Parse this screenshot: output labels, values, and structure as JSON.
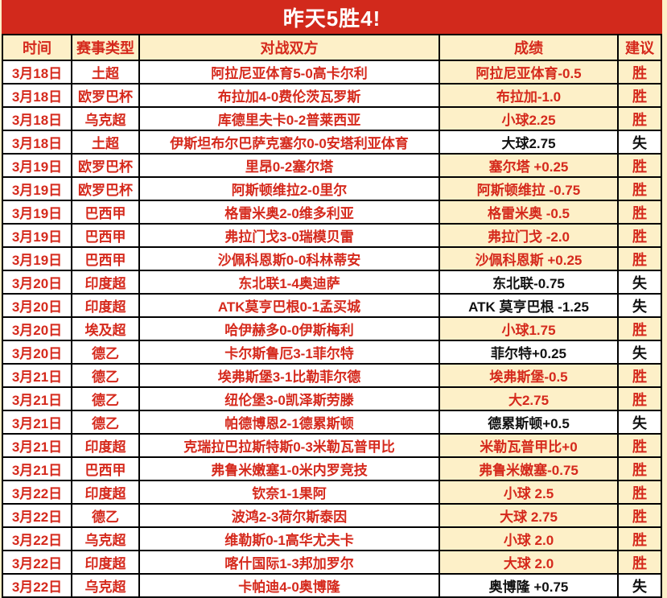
{
  "banner": {
    "title": "昨天5胜4!"
  },
  "table": {
    "headers": [
      "时间",
      "赛事类型",
      "对战双方",
      "成绩",
      "建议"
    ],
    "rows": [
      {
        "date": "3月18日",
        "league": "土超",
        "match": "阿拉尼亚体育5-0高卡尔利",
        "result": "阿拉尼亚体育-0.5",
        "verdict": "胜",
        "outcome": "win"
      },
      {
        "date": "3月18日",
        "league": "欧罗巴杯",
        "match": "布拉加4-0费伦茨瓦罗斯",
        "result": "布拉加-1.0",
        "verdict": "胜",
        "outcome": "win"
      },
      {
        "date": "3月18日",
        "league": "乌克超",
        "match": "库德里夫卡0-2普莱西亚",
        "result": "小球2.25",
        "verdict": "胜",
        "outcome": "win"
      },
      {
        "date": "3月18日",
        "league": "土超",
        "match": "伊斯坦布尔巴萨克塞尔0-0安塔利亚体育",
        "result": "大球2.75",
        "verdict": "失",
        "outcome": "loss"
      },
      {
        "date": "3月19日",
        "league": "欧罗巴杯",
        "match": "里昂0-2塞尔塔",
        "result": "塞尔塔 +0.25",
        "verdict": "胜",
        "outcome": "win"
      },
      {
        "date": "3月19日",
        "league": "欧罗巴杯",
        "match": "阿斯顿维拉2-0里尔",
        "result": "阿斯顿维拉 -0.75",
        "verdict": "胜",
        "outcome": "win"
      },
      {
        "date": "3月19日",
        "league": "巴西甲",
        "match": "格雷米奥2-0维多利亚",
        "result": "格雷米奥 -0.5",
        "verdict": "胜",
        "outcome": "win"
      },
      {
        "date": "3月19日",
        "league": "巴西甲",
        "match": "弗拉门戈3-0瑞模贝雷",
        "result": "弗拉门戈 -2.0",
        "verdict": "胜",
        "outcome": "win"
      },
      {
        "date": "3月19日",
        "league": "巴西甲",
        "match": "沙佩科恩斯0-0科林蒂安",
        "result": "沙佩科恩斯 +0.25",
        "verdict": "胜",
        "outcome": "win"
      },
      {
        "date": "3月20日",
        "league": "印度超",
        "match": "东北联1-4奥迪萨",
        "result": "东北联-0.75",
        "verdict": "失",
        "outcome": "loss"
      },
      {
        "date": "3月20日",
        "league": "印度超",
        "match": "ATK莫亨巴根0-1孟买城",
        "result": "ATK 莫亨巴根 -1.25",
        "verdict": "失",
        "outcome": "loss"
      },
      {
        "date": "3月20日",
        "league": "埃及超",
        "match": "哈伊赫多0-0伊斯梅利",
        "result": "小球1.75",
        "verdict": "胜",
        "outcome": "win"
      },
      {
        "date": "3月20日",
        "league": "德乙",
        "match": "卡尔斯鲁厄3-1菲尔特",
        "result": "菲尔特+0.25",
        "verdict": "失",
        "outcome": "loss"
      },
      {
        "date": "3月21日",
        "league": "德乙",
        "match": "埃弗斯堡3-1比勒菲尔德",
        "result": "埃弗斯堡-0.5",
        "verdict": "胜",
        "outcome": "win"
      },
      {
        "date": "3月21日",
        "league": "德乙",
        "match": "纽伦堡3-0凯泽斯劳滕",
        "result": "大2.75",
        "verdict": "胜",
        "outcome": "win"
      },
      {
        "date": "3月21日",
        "league": "德乙",
        "match": "帕德博恩2-1德累斯顿",
        "result": "德累斯顿+0.5",
        "verdict": "失",
        "outcome": "loss"
      },
      {
        "date": "3月21日",
        "league": "印度超",
        "match": "克瑞拉巴拉斯特斯0-3米勒瓦普甲比",
        "result": "米勒瓦普甲比+0",
        "verdict": "胜",
        "outcome": "win"
      },
      {
        "date": "3月21日",
        "league": "巴西甲",
        "match": "弗鲁米嫩塞1-0米内罗竞技",
        "result": "弗鲁米嫩塞-0.75",
        "verdict": "胜",
        "outcome": "win"
      },
      {
        "date": "3月22日",
        "league": "印度超",
        "match": "钦奈1-1果阿",
        "result": "小球 2.5",
        "verdict": "胜",
        "outcome": "win"
      },
      {
        "date": "3月22日",
        "league": "德乙",
        "match": "波鸿2-3荷尔斯泰因",
        "result": "大球 2.75",
        "verdict": "胜",
        "outcome": "win"
      },
      {
        "date": "3月22日",
        "league": "乌克超",
        "match": "维勒斯0-1高华尤夫卡",
        "result": "小球 2.0",
        "verdict": "胜",
        "outcome": "win"
      },
      {
        "date": "3月22日",
        "league": "印度超",
        "match": "喀什国际1-3邦加罗尔",
        "result": "大球 2.0",
        "verdict": "胜",
        "outcome": "win"
      },
      {
        "date": "3月22日",
        "league": "乌克超",
        "match": "卡帕迪4-0奥博隆",
        "result": "奥博隆 +0.75",
        "verdict": "失",
        "outcome": "loss"
      }
    ]
  },
  "colors": {
    "banner_red": "#d2291c",
    "text_red": "#d5291c",
    "cream": "#fdf0c8",
    "win_bg": "#fdf0c8",
    "loss_bg": "#ffffff",
    "loss_text": "#111111"
  }
}
